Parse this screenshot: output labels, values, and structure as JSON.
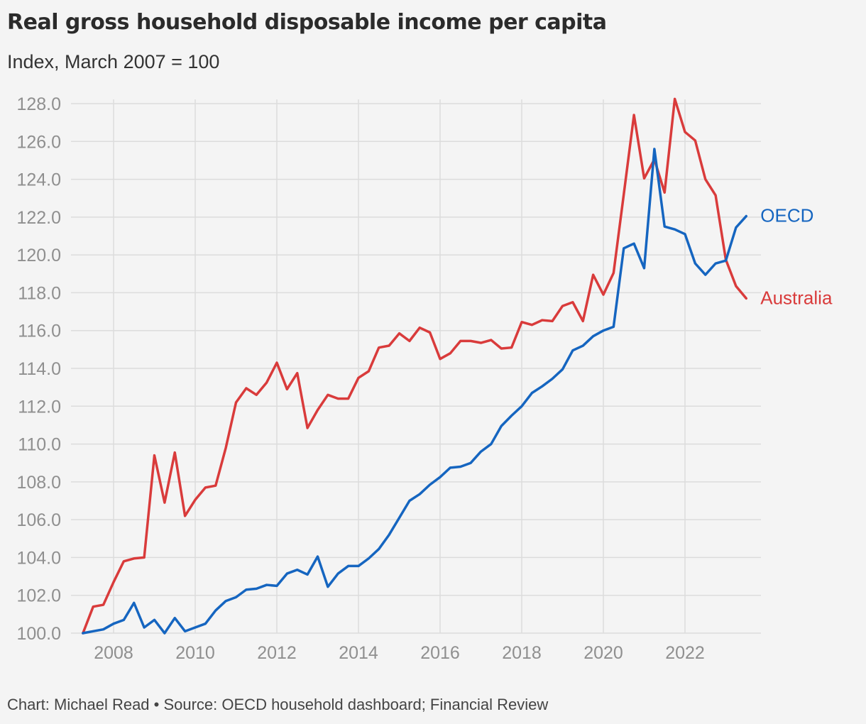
{
  "header": {
    "title": "Real gross household disposable income per capita",
    "subtitle": "Index, March 2007 = 100"
  },
  "footer": {
    "credit": "Chart: Michael Read • Source: OECD household dashboard; Financial Review"
  },
  "colors": {
    "oecd": "#1565c0",
    "australia": "#d93b3b",
    "grid": "#dcdcdc",
    "background": "#f4f4f4"
  },
  "chart_data": {
    "type": "line",
    "title": "Real gross household disposable income per capita",
    "subtitle": "Index, March 2007 = 100",
    "xlim": [
      2006.75,
      2024.25
    ],
    "ylim": [
      100,
      128
    ],
    "x_ticks": [
      2008,
      2010,
      2012,
      2014,
      2016,
      2018,
      2020,
      2022
    ],
    "x_tick_labels": [
      "2008",
      "2010",
      "2012",
      "2014",
      "2016",
      "2018",
      "2020",
      "2022"
    ],
    "y_ticks": [
      100,
      102,
      104,
      106,
      108,
      110,
      112,
      114,
      116,
      118,
      120,
      122,
      124,
      126,
      128
    ],
    "y_tick_labels": [
      "100.0",
      "102.0",
      "104.0",
      "106.0",
      "108.0",
      "110.0",
      "112.0",
      "114.0",
      "116.0",
      "118.0",
      "120.0",
      "122.0",
      "124.0",
      "126.0",
      "128.0"
    ],
    "grid": true,
    "legend": "direct labels at line ends",
    "series": [
      {
        "name": "OECD",
        "color": "#1565c0",
        "x": [
          2007.25,
          2007.5,
          2007.75,
          2008.0,
          2008.25,
          2008.5,
          2008.75,
          2009.0,
          2009.25,
          2009.5,
          2009.75,
          2010.0,
          2010.25,
          2010.5,
          2010.75,
          2011.0,
          2011.25,
          2011.5,
          2011.75,
          2012.0,
          2012.25,
          2012.5,
          2012.75,
          2013.0,
          2013.25,
          2013.5,
          2013.75,
          2014.0,
          2014.25,
          2014.5,
          2014.75,
          2015.0,
          2015.25,
          2015.5,
          2015.75,
          2016.0,
          2016.25,
          2016.5,
          2016.75,
          2017.0,
          2017.25,
          2017.5,
          2017.75,
          2018.0,
          2018.25,
          2018.5,
          2018.75,
          2019.0,
          2019.25,
          2019.5,
          2019.75,
          2020.0,
          2020.25,
          2020.5,
          2020.75,
          2021.0,
          2021.25,
          2021.5,
          2021.75,
          2022.0,
          2022.25,
          2022.5,
          2022.75,
          2023.0,
          2023.25,
          2023.5
        ],
        "values": [
          100.0,
          100.1,
          100.2,
          100.5,
          100.7,
          101.6,
          100.3,
          100.7,
          100.0,
          100.8,
          100.1,
          100.3,
          100.5,
          101.2,
          101.7,
          101.9,
          102.3,
          102.35,
          102.55,
          102.5,
          103.15,
          103.35,
          103.1,
          104.05,
          102.45,
          103.15,
          103.55,
          103.55,
          103.95,
          104.45,
          105.2,
          106.1,
          107.0,
          107.35,
          107.85,
          108.25,
          108.75,
          108.8,
          109.0,
          109.6,
          110.0,
          110.95,
          111.5,
          112.0,
          112.7,
          113.05,
          113.45,
          113.95,
          114.95,
          115.2,
          115.7,
          116.0,
          116.2,
          120.35,
          120.6,
          119.3,
          125.6,
          121.5,
          121.35,
          121.1,
          119.55,
          118.95,
          119.55,
          119.7,
          121.45,
          122.05
        ]
      },
      {
        "name": "Australia",
        "color": "#d93b3b",
        "x": [
          2007.25,
          2007.5,
          2007.75,
          2008.0,
          2008.25,
          2008.5,
          2008.75,
          2009.0,
          2009.25,
          2009.5,
          2009.75,
          2010.0,
          2010.25,
          2010.5,
          2010.75,
          2011.0,
          2011.25,
          2011.5,
          2011.75,
          2012.0,
          2012.25,
          2012.5,
          2012.75,
          2013.0,
          2013.25,
          2013.5,
          2013.75,
          2014.0,
          2014.25,
          2014.5,
          2014.75,
          2015.0,
          2015.25,
          2015.5,
          2015.75,
          2016.0,
          2016.25,
          2016.5,
          2016.75,
          2017.0,
          2017.25,
          2017.5,
          2017.75,
          2018.0,
          2018.25,
          2018.5,
          2018.75,
          2019.0,
          2019.25,
          2019.5,
          2019.75,
          2020.0,
          2020.25,
          2020.5,
          2020.75,
          2021.0,
          2021.25,
          2021.5,
          2021.75,
          2022.0,
          2022.25,
          2022.5,
          2022.75,
          2023.0,
          2023.25,
          2023.5
        ],
        "values": [
          100.0,
          101.4,
          101.5,
          102.7,
          103.8,
          103.95,
          104.0,
          109.4,
          106.9,
          109.55,
          106.2,
          107.05,
          107.7,
          107.8,
          109.8,
          112.2,
          112.95,
          112.6,
          113.25,
          114.3,
          112.9,
          113.75,
          110.85,
          111.8,
          112.6,
          112.4,
          112.4,
          113.5,
          113.85,
          115.1,
          115.2,
          115.85,
          115.45,
          116.15,
          115.9,
          114.5,
          114.8,
          115.45,
          115.45,
          115.35,
          115.5,
          115.05,
          115.1,
          116.45,
          116.3,
          116.55,
          116.5,
          117.3,
          117.5,
          116.5,
          118.95,
          117.9,
          119.05,
          123.2,
          127.4,
          124.05,
          125.05,
          123.3,
          128.25,
          126.5,
          126.05,
          124.0,
          123.15,
          119.75,
          118.35,
          117.7
        ]
      }
    ]
  }
}
